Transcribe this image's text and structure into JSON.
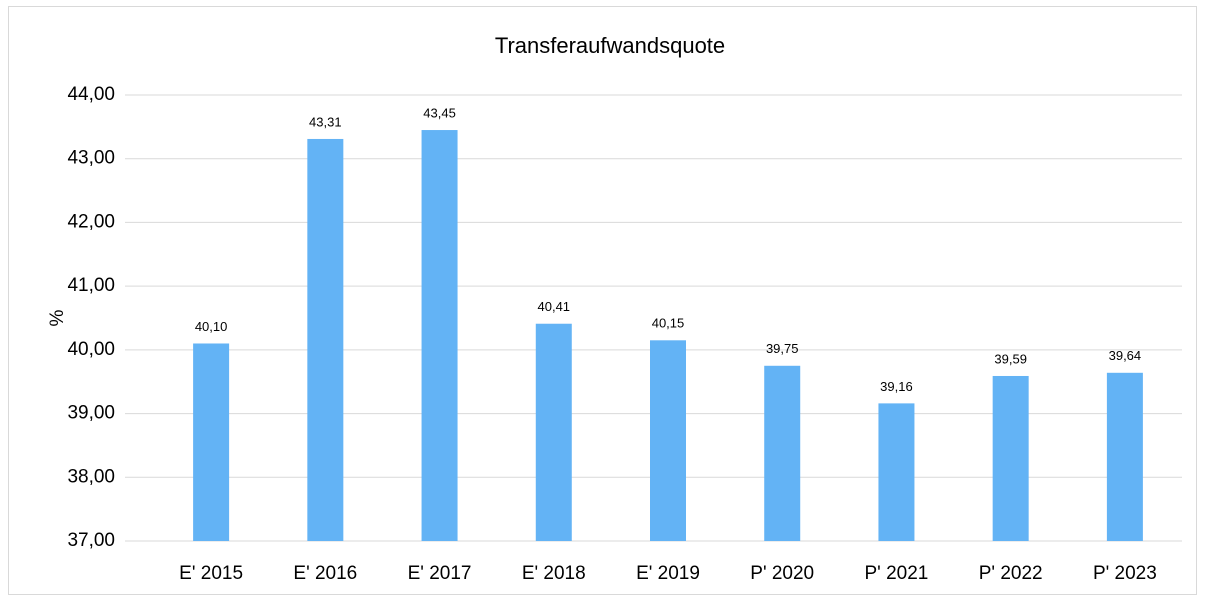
{
  "chart_data": {
    "type": "bar",
    "title": "Transferaufwandsquote",
    "y_label": "%",
    "categories": [
      "E' 2015",
      "E' 2016",
      "E' 2017",
      "E' 2018",
      "E' 2019",
      "P' 2020",
      "P' 2021",
      "P' 2022",
      "P' 2023"
    ],
    "values": [
      40.1,
      43.31,
      43.45,
      40.41,
      40.15,
      39.75,
      39.16,
      39.59,
      39.64
    ],
    "value_labels": [
      "40,10",
      "43,31",
      "43,45",
      "40,41",
      "40,15",
      "39,75",
      "39,16",
      "39,59",
      "39,64"
    ],
    "color": "#63b3f5",
    "ylim": [
      37,
      44
    ],
    "yticks": [
      {
        "value": 37,
        "label": "37,00"
      },
      {
        "value": 38,
        "label": "38,00"
      },
      {
        "value": 39,
        "label": "39,00"
      },
      {
        "value": 40,
        "label": "40,00"
      },
      {
        "value": 41,
        "label": "41,00"
      },
      {
        "value": 42,
        "label": "42,00"
      },
      {
        "value": 43,
        "label": "43,00"
      },
      {
        "value": 44,
        "label": "44,00"
      }
    ],
    "grid": true
  }
}
